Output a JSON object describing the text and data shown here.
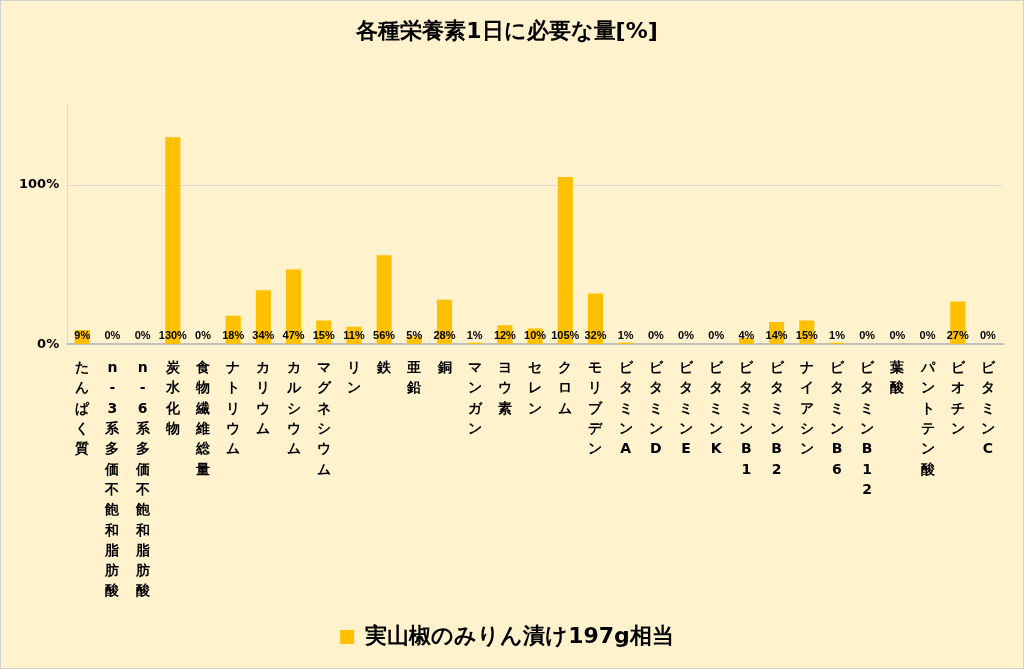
{
  "chart_data": {
    "type": "bar",
    "title": "各種栄養素1日に必要な量[%]",
    "categories": [
      "たんぱく質",
      "n-3系多価不飽和脂肪酸",
      "n-6系多価不飽和脂肪酸",
      "炭水化物",
      "食物繊維総量",
      "ナトリウム",
      "カリウム",
      "カルシウム",
      "マグネシウム",
      "リン",
      "鉄",
      "亜鉛",
      "銅",
      "マンガン",
      "ヨウ素",
      "セレン",
      "クロム",
      "モリブデン",
      "ビタミンA",
      "ビタミンD",
      "ビタミンE",
      "ビタミンK",
      "ビタミンB1",
      "ビタミンB2",
      "ナイアシン",
      "ビタミンB6",
      "ビタミンB12",
      "葉酸",
      "パントテン酸",
      "ビオチン",
      "ビタミンC"
    ],
    "series": [
      {
        "name": "実山椒のみりん漬け197g相当",
        "color": "#ffc000",
        "values": [
          9,
          0,
          0,
          130,
          0,
          18,
          34,
          47,
          15,
          11,
          56,
          5,
          28,
          1,
          12,
          10,
          105,
          32,
          1,
          0,
          0,
          0,
          4,
          14,
          15,
          1,
          0,
          0,
          0,
          27,
          0
        ],
        "value_labels": [
          "9%",
          "0%",
          "0%",
          "130%",
          "0%",
          "18%",
          "34%",
          "47%",
          "15%",
          "11%",
          "56%",
          "5%",
          "28%",
          "1%",
          "12%",
          "10%",
          "105%",
          "32%",
          "1%",
          "0%",
          "0%",
          "0%",
          "4%",
          "14%",
          "15%",
          "1%",
          "0%",
          "0%",
          "0%",
          "27%",
          "0%"
        ]
      }
    ],
    "ylim": [
      0,
      150
    ],
    "yticks": [
      {
        "value": 0,
        "label": "0%"
      },
      {
        "value": 100,
        "label": "100%"
      }
    ],
    "grid": "y",
    "legend": "bottom"
  }
}
